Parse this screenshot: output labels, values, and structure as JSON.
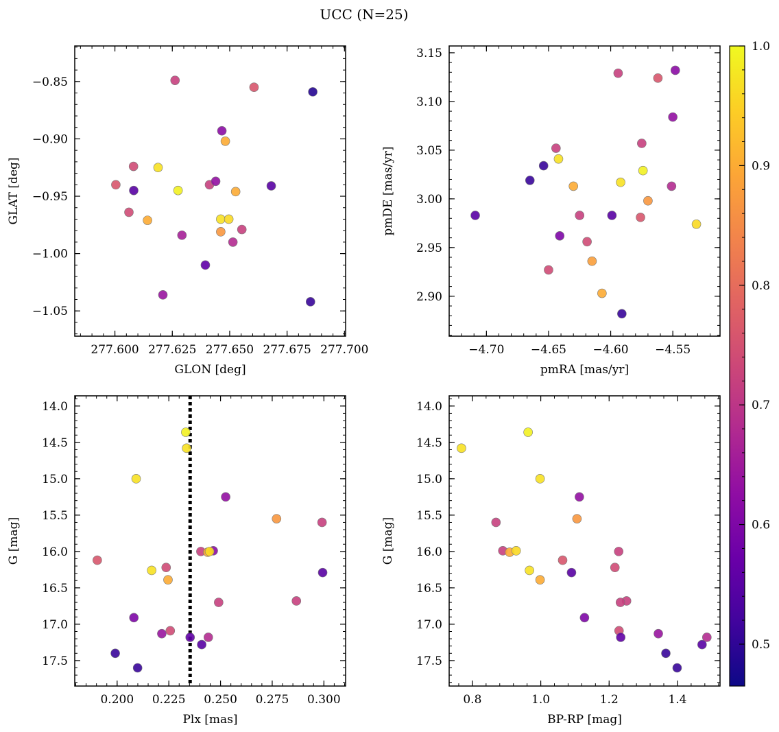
{
  "figure": {
    "title": "UCC (N=25)"
  },
  "colorbar": {
    "range": [
      0.465,
      1.0
    ],
    "ticks": [
      0.5,
      0.6,
      0.7,
      0.8,
      0.9,
      1.0
    ],
    "tick_labels": [
      "0.5",
      "0.6",
      "0.7",
      "0.8",
      "0.9",
      "1.0"
    ],
    "colormap": "plasma"
  },
  "chart_data": [
    {
      "type": "scatter",
      "xlabel": "GLON [deg]",
      "ylabel": "GLAT [deg]",
      "xlim": [
        277.5825,
        277.7005
      ],
      "ylim": [
        -1.072,
        -0.819
      ],
      "xticks": [
        277.6,
        277.625,
        277.65,
        277.675,
        277.7
      ],
      "xtick_labels": [
        "277.600",
        "277.625",
        "277.650",
        "277.675",
        "277.700"
      ],
      "yticks": [
        -1.05,
        -1.0,
        -0.95,
        -0.9,
        -0.85
      ],
      "ytick_labels": [
        "−1.05",
        "−1.00",
        "−0.95",
        "−0.90",
        "−0.85"
      ],
      "points": [
        {
          "x": 277.6262,
          "y": -0.849,
          "c": 0.72
        },
        {
          "x": 277.6606,
          "y": -0.855,
          "c": 0.76
        },
        {
          "x": 277.6862,
          "y": -0.859,
          "c": 0.49
        },
        {
          "x": 277.6466,
          "y": -0.893,
          "c": 0.62
        },
        {
          "x": 277.6481,
          "y": -0.902,
          "c": 0.9
        },
        {
          "x": 277.6081,
          "y": -0.924,
          "c": 0.74
        },
        {
          "x": 277.6188,
          "y": -0.925,
          "c": 0.97
        },
        {
          "x": 277.6004,
          "y": -0.94,
          "c": 0.76
        },
        {
          "x": 277.6412,
          "y": -0.94,
          "c": 0.72
        },
        {
          "x": 277.6439,
          "y": -0.937,
          "c": 0.63
        },
        {
          "x": 277.6082,
          "y": -0.945,
          "c": 0.55
        },
        {
          "x": 277.6275,
          "y": -0.945,
          "c": 0.99
        },
        {
          "x": 277.6526,
          "y": -0.946,
          "c": 0.9
        },
        {
          "x": 277.6681,
          "y": -0.941,
          "c": 0.55
        },
        {
          "x": 277.6061,
          "y": -0.964,
          "c": 0.74
        },
        {
          "x": 277.6142,
          "y": -0.971,
          "c": 0.9
        },
        {
          "x": 277.6461,
          "y": -0.97,
          "c": 0.97
        },
        {
          "x": 277.6496,
          "y": -0.97,
          "c": 0.96
        },
        {
          "x": 277.6553,
          "y": -0.979,
          "c": 0.72
        },
        {
          "x": 277.6461,
          "y": -0.981,
          "c": 0.87
        },
        {
          "x": 277.6292,
          "y": -0.984,
          "c": 0.66
        },
        {
          "x": 277.6514,
          "y": -0.99,
          "c": 0.68
        },
        {
          "x": 277.6394,
          "y": -1.01,
          "c": 0.56
        },
        {
          "x": 277.6209,
          "y": -1.036,
          "c": 0.64
        },
        {
          "x": 277.6852,
          "y": -1.042,
          "c": 0.51
        }
      ]
    },
    {
      "type": "scatter",
      "xlabel": "pmRA [mas/yr]",
      "ylabel": "pmDE [mas/yr]",
      "xlim": [
        -4.73,
        -4.512
      ],
      "ylim": [
        2.859,
        3.157
      ],
      "xticks": [
        -4.7,
        -4.65,
        -4.6,
        -4.55
      ],
      "xtick_labels": [
        "−4.70",
        "−4.65",
        "−4.60",
        "−4.55"
      ],
      "yticks": [
        2.9,
        2.95,
        3.0,
        3.05,
        3.1,
        3.15
      ],
      "ytick_labels": [
        "2.90",
        "2.95",
        "3.00",
        "3.05",
        "3.10",
        "3.15"
      ],
      "points": [
        {
          "x": -4.594,
          "y": 3.129,
          "c": 0.72
        },
        {
          "x": -4.562,
          "y": 3.124,
          "c": 0.76
        },
        {
          "x": -4.548,
          "y": 3.132,
          "c": 0.62
        },
        {
          "x": -4.55,
          "y": 3.084,
          "c": 0.63
        },
        {
          "x": -4.575,
          "y": 3.057,
          "c": 0.72
        },
        {
          "x": -4.644,
          "y": 3.052,
          "c": 0.72
        },
        {
          "x": -4.642,
          "y": 3.041,
          "c": 0.97
        },
        {
          "x": -4.654,
          "y": 3.034,
          "c": 0.51
        },
        {
          "x": -4.574,
          "y": 3.029,
          "c": 0.99
        },
        {
          "x": -4.665,
          "y": 3.019,
          "c": 0.51
        },
        {
          "x": -4.592,
          "y": 3.017,
          "c": 0.97
        },
        {
          "x": -4.63,
          "y": 3.013,
          "c": 0.9
        },
        {
          "x": -4.551,
          "y": 3.013,
          "c": 0.68
        },
        {
          "x": -4.57,
          "y": 2.998,
          "c": 0.87
        },
        {
          "x": -4.709,
          "y": 2.983,
          "c": 0.55
        },
        {
          "x": -4.625,
          "y": 2.983,
          "c": 0.72
        },
        {
          "x": -4.599,
          "y": 2.983,
          "c": 0.55
        },
        {
          "x": -4.576,
          "y": 2.981,
          "c": 0.76
        },
        {
          "x": -4.531,
          "y": 2.974,
          "c": 0.96
        },
        {
          "x": -4.641,
          "y": 2.962,
          "c": 0.6
        },
        {
          "x": -4.619,
          "y": 2.956,
          "c": 0.74
        },
        {
          "x": -4.615,
          "y": 2.936,
          "c": 0.88
        },
        {
          "x": -4.65,
          "y": 2.927,
          "c": 0.74
        },
        {
          "x": -4.607,
          "y": 2.903,
          "c": 0.9
        },
        {
          "x": -4.591,
          "y": 2.882,
          "c": 0.51
        }
      ]
    },
    {
      "type": "scatter",
      "xlabel": "Plx [mas]",
      "ylabel": "G [mag]",
      "xlim": [
        0.1795,
        0.3105
      ],
      "ylim": [
        17.85,
        13.86
      ],
      "y_inverted": true,
      "xticks": [
        0.2,
        0.225,
        0.25,
        0.275,
        0.3
      ],
      "xtick_labels": [
        "0.200",
        "0.225",
        "0.250",
        "0.275",
        "0.300"
      ],
      "yticks": [
        14.0,
        14.5,
        15.0,
        15.5,
        16.0,
        16.5,
        17.0,
        17.5
      ],
      "ytick_labels": [
        "14.0",
        "14.5",
        "15.0",
        "15.5",
        "16.0",
        "16.5",
        "17.0",
        "17.5"
      ],
      "vline": {
        "x": 0.2353,
        "style": "dotted"
      },
      "points": [
        {
          "x": 0.2332,
          "y": 14.36,
          "c": 0.99
        },
        {
          "x": 0.2336,
          "y": 14.58,
          "c": 0.97
        },
        {
          "x": 0.2092,
          "y": 15.0,
          "c": 0.97
        },
        {
          "x": 0.2525,
          "y": 15.25,
          "c": 0.63
        },
        {
          "x": 0.2771,
          "y": 15.55,
          "c": 0.87
        },
        {
          "x": 0.2991,
          "y": 15.6,
          "c": 0.72
        },
        {
          "x": 0.2465,
          "y": 15.99,
          "c": 0.62
        },
        {
          "x": 0.2405,
          "y": 16.0,
          "c": 0.72
        },
        {
          "x": 0.2438,
          "y": 16.01,
          "c": 0.9
        },
        {
          "x": 0.2447,
          "y": 16.0,
          "c": 0.96
        },
        {
          "x": 0.1904,
          "y": 16.12,
          "c": 0.76
        },
        {
          "x": 0.2237,
          "y": 16.22,
          "c": 0.74
        },
        {
          "x": 0.2167,
          "y": 16.26,
          "c": 0.97
        },
        {
          "x": 0.2994,
          "y": 16.29,
          "c": 0.55
        },
        {
          "x": 0.2246,
          "y": 16.39,
          "c": 0.9
        },
        {
          "x": 0.2867,
          "y": 16.68,
          "c": 0.72
        },
        {
          "x": 0.2491,
          "y": 16.7,
          "c": 0.72
        },
        {
          "x": 0.2081,
          "y": 16.91,
          "c": 0.6
        },
        {
          "x": 0.2257,
          "y": 17.09,
          "c": 0.74
        },
        {
          "x": 0.2216,
          "y": 17.13,
          "c": 0.64
        },
        {
          "x": 0.2353,
          "y": 17.18,
          "c": 0.56
        },
        {
          "x": 0.2441,
          "y": 17.18,
          "c": 0.68
        },
        {
          "x": 0.2409,
          "y": 17.28,
          "c": 0.55
        },
        {
          "x": 0.1991,
          "y": 17.4,
          "c": 0.51
        },
        {
          "x": 0.2099,
          "y": 17.6,
          "c": 0.51
        }
      ]
    },
    {
      "type": "scatter",
      "xlabel": "BP-RP [mag]",
      "ylabel": "G [mag]",
      "xlim": [
        0.732,
        1.5245
      ],
      "ylim": [
        17.85,
        13.86
      ],
      "y_inverted": true,
      "xticks": [
        0.8,
        1.0,
        1.2,
        1.4
      ],
      "xtick_labels": [
        "0.8",
        "1.0",
        "1.2",
        "1.4"
      ],
      "yticks": [
        14.0,
        14.5,
        15.0,
        15.5,
        16.0,
        16.5,
        17.0,
        17.5
      ],
      "ytick_labels": [
        "14.0",
        "14.5",
        "15.0",
        "15.5",
        "16.0",
        "16.5",
        "17.0",
        "17.5"
      ],
      "points": [
        {
          "x": 0.963,
          "y": 14.36,
          "c": 0.99
        },
        {
          "x": 0.768,
          "y": 14.58,
          "c": 0.97
        },
        {
          "x": 0.998,
          "y": 15.0,
          "c": 0.97
        },
        {
          "x": 1.113,
          "y": 15.25,
          "c": 0.63
        },
        {
          "x": 1.106,
          "y": 15.55,
          "c": 0.87
        },
        {
          "x": 0.869,
          "y": 15.6,
          "c": 0.72
        },
        {
          "x": 0.889,
          "y": 15.99,
          "c": 0.72
        },
        {
          "x": 0.909,
          "y": 16.01,
          "c": 0.9
        },
        {
          "x": 0.928,
          "y": 15.99,
          "c": 0.96
        },
        {
          "x": 1.228,
          "y": 16.0,
          "c": 0.72
        },
        {
          "x": 1.064,
          "y": 16.12,
          "c": 0.76
        },
        {
          "x": 1.217,
          "y": 16.22,
          "c": 0.74
        },
        {
          "x": 0.967,
          "y": 16.26,
          "c": 0.97
        },
        {
          "x": 1.09,
          "y": 16.29,
          "c": 0.55
        },
        {
          "x": 0.998,
          "y": 16.39,
          "c": 0.9
        },
        {
          "x": 1.251,
          "y": 16.68,
          "c": 0.72
        },
        {
          "x": 1.233,
          "y": 16.7,
          "c": 0.72
        },
        {
          "x": 1.128,
          "y": 16.91,
          "c": 0.6
        },
        {
          "x": 1.229,
          "y": 17.09,
          "c": 0.74
        },
        {
          "x": 1.344,
          "y": 17.13,
          "c": 0.64
        },
        {
          "x": 1.234,
          "y": 17.18,
          "c": 0.56
        },
        {
          "x": 1.486,
          "y": 17.18,
          "c": 0.68
        },
        {
          "x": 1.472,
          "y": 17.28,
          "c": 0.55
        },
        {
          "x": 1.366,
          "y": 17.4,
          "c": 0.51
        },
        {
          "x": 1.399,
          "y": 17.6,
          "c": 0.51
        }
      ]
    }
  ]
}
